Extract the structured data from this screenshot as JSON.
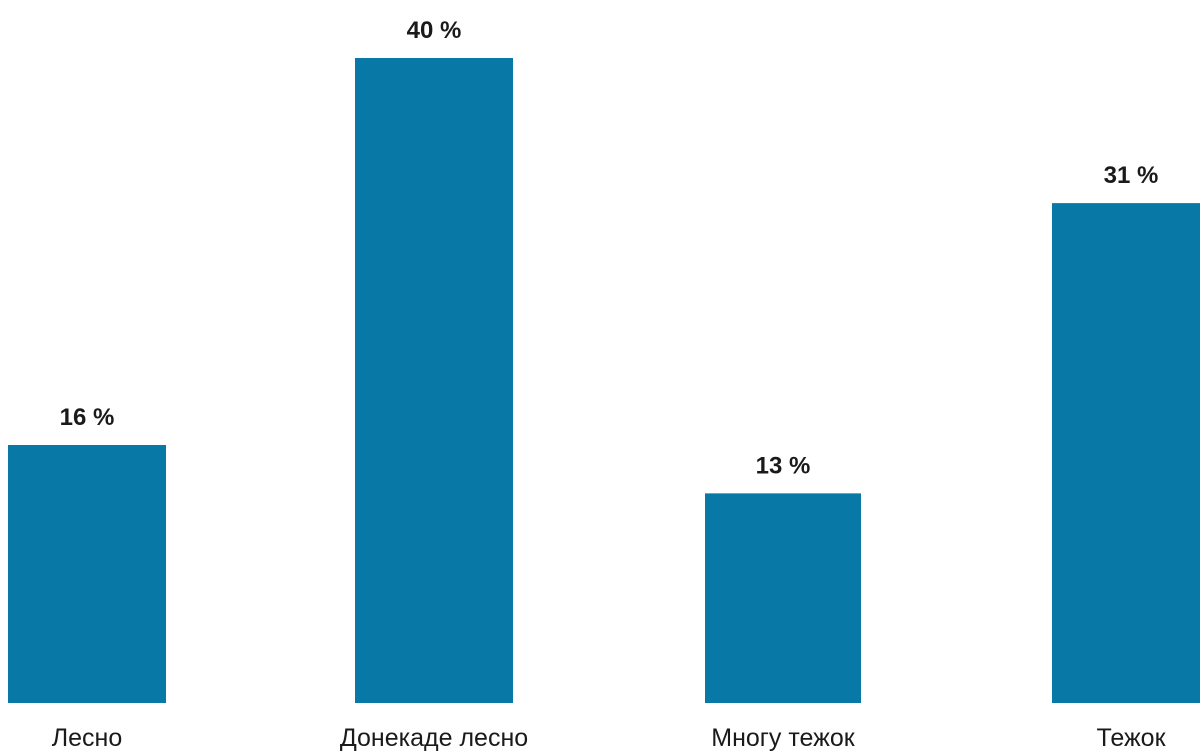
{
  "chart_data": {
    "type": "bar",
    "title": "",
    "xlabel": "",
    "ylabel": "",
    "categories": [
      "Лесно",
      "Донекаде лесно",
      "Многу тежок",
      "Тежок"
    ],
    "values": [
      16,
      40,
      13,
      31
    ],
    "value_labels": [
      "16 %",
      "40 %",
      "13 %",
      "31 %"
    ],
    "ylim": [
      0,
      40
    ],
    "grid": false,
    "legend": "none",
    "bar_color": "#0878a6"
  }
}
